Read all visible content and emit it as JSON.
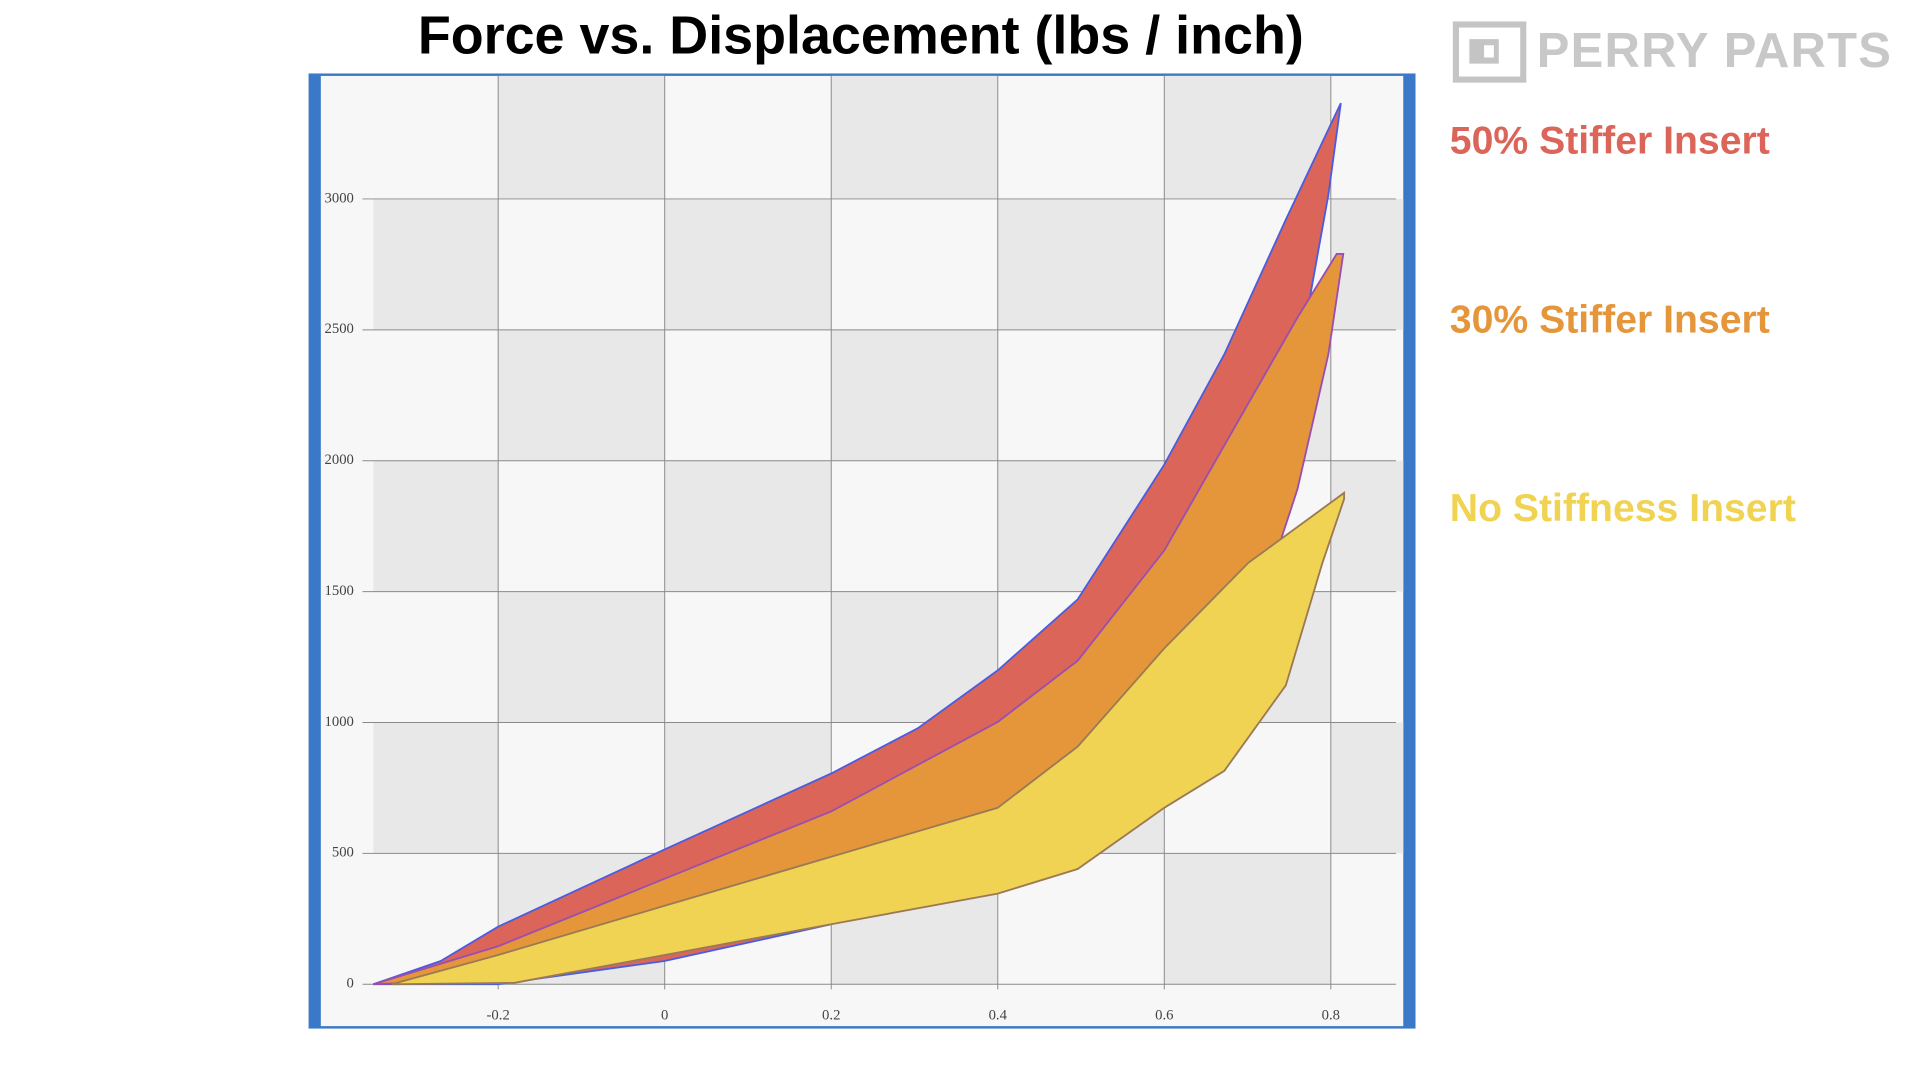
{
  "chart_data": {
    "type": "area",
    "title": "Force vs. Displacement (lbs / inch)",
    "brand": "PERRY PARTS",
    "xlim": [
      -0.413,
      0.887
    ],
    "ylim": [
      -160,
      3470
    ],
    "xticks": [
      -0.2,
      0,
      0.2,
      0.4,
      0.6,
      0.8
    ],
    "yticks": [
      0,
      500,
      1000,
      1500,
      2000,
      2500,
      3000
    ],
    "grid": true,
    "legend": "right",
    "series": [
      {
        "name": "50% Stiffer Insert",
        "color": "#dc6559",
        "edge_color": "#4a5de0",
        "x": [
          -0.35,
          -0.269,
          -0.2,
          0,
          0.2,
          0.304,
          0.4,
          0.496,
          0.6,
          0.672,
          0.746,
          0.812,
          0.797,
          0.76,
          0.731,
          0.672,
          0.6,
          0.496,
          0.4,
          0.2,
          0,
          -0.2,
          -0.35
        ],
        "values": [
          0,
          89,
          220,
          515,
          805,
          978,
          1199,
          1470,
          1985,
          2406,
          2921,
          3366,
          3015,
          2360,
          1610,
          1236,
          908,
          581,
          440,
          229,
          89,
          0,
          0
        ]
      },
      {
        "name": "30% Stiffer Insert",
        "color": "#e5963a",
        "edge_color": "#9a4fb0",
        "x": [
          -0.35,
          -0.2,
          0,
          0.2,
          0.4,
          0.496,
          0.6,
          0.701,
          0.76,
          0.807,
          0.815,
          0.797,
          0.76,
          0.731,
          0.672,
          0.6,
          0.496,
          0.4,
          0.2,
          0,
          -0.2,
          -0.35
        ],
        "values": [
          0,
          145,
          403,
          660,
          1002,
          1236,
          1657,
          2219,
          2547,
          2790,
          2790,
          2406,
          1891,
          1610,
          1330,
          1002,
          768,
          637,
          393,
          183,
          19,
          0
        ]
      },
      {
        "name": "No Stiffness Insert",
        "color": "#f0d352",
        "edge_color": "#9a7a55",
        "x": [
          -0.328,
          -0.2,
          0,
          0.2,
          0.4,
          0.496,
          0.6,
          0.701,
          0.816,
          0.816,
          0.79,
          0.746,
          0.672,
          0.6,
          0.496,
          0.4,
          0.2,
          0,
          -0.181,
          -0.328
        ],
        "values": [
          0,
          112,
          300,
          487,
          674,
          908,
          1283,
          1610,
          1877,
          1854,
          1610,
          1142,
          815,
          674,
          440,
          346,
          229,
          112,
          5,
          0
        ]
      }
    ]
  }
}
